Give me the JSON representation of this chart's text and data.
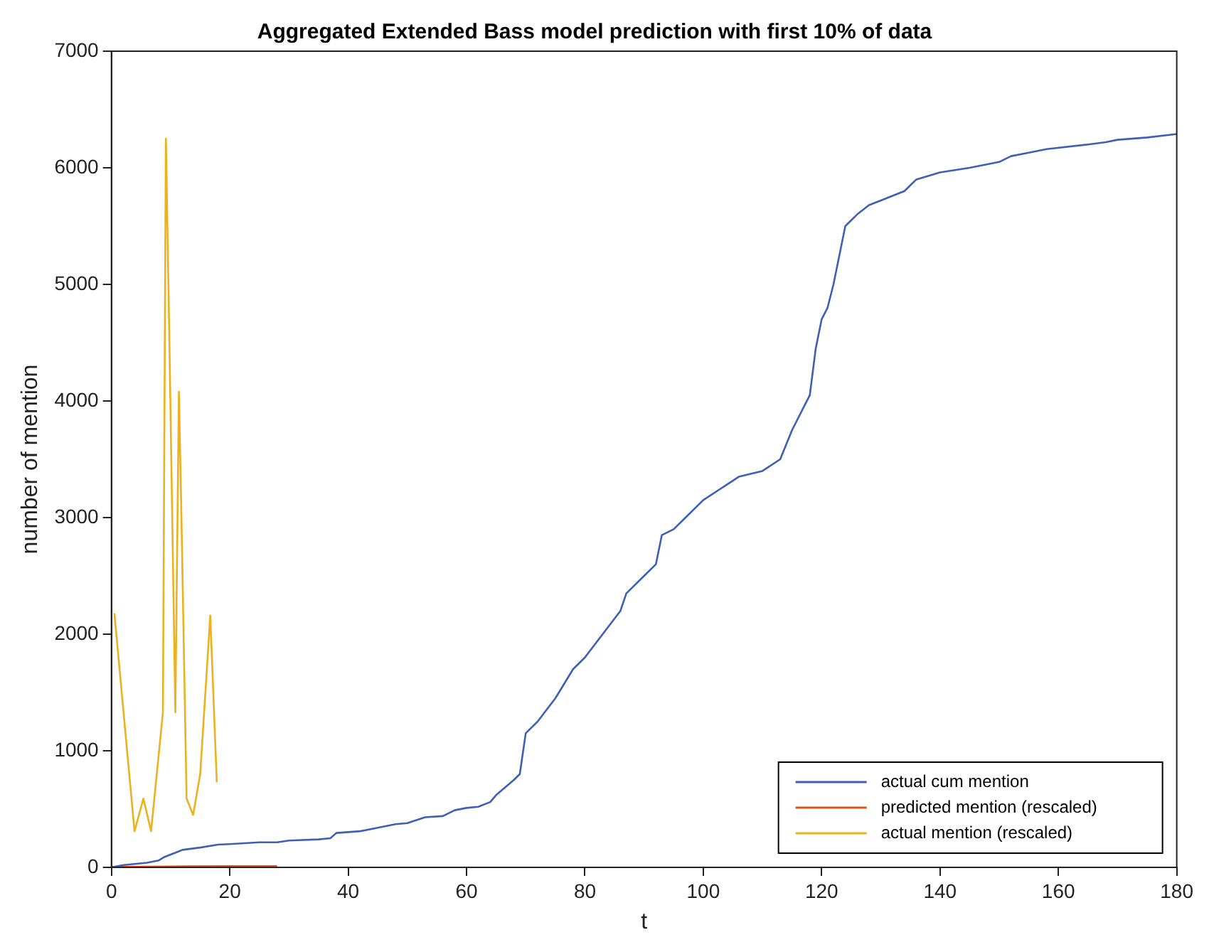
{
  "chart_data": {
    "type": "line",
    "title": "Aggregated Extended Bass model prediction with first 10% of data",
    "xlabel": "t",
    "ylabel": "number of mention",
    "xlim": [
      0,
      180
    ],
    "xticks": [
      0,
      20,
      40,
      60,
      80,
      100,
      120,
      140,
      160,
      180
    ],
    "ylim": [
      0,
      7000
    ],
    "yticks": [
      0,
      1000,
      2000,
      3000,
      4000,
      5000,
      6000,
      7000
    ],
    "grid": false,
    "legend": "bottom right",
    "marker": "none",
    "line_style": "solid",
    "series": [
      {
        "name": "actual cum mention",
        "color": "#3f5fb5",
        "x": [
          0,
          2,
          6,
          8,
          9,
          10,
          11,
          12,
          15,
          18,
          20,
          25,
          28,
          30,
          35,
          37,
          38,
          42,
          45,
          48,
          50,
          53,
          56,
          58,
          60,
          62,
          64,
          65,
          68,
          69,
          70,
          72,
          75,
          78,
          80,
          83,
          86,
          87,
          90,
          92,
          93,
          95,
          97,
          100,
          103,
          106,
          110,
          113,
          115,
          117,
          118,
          119,
          120,
          121,
          122,
          124,
          126,
          128,
          130,
          133,
          134,
          136,
          140,
          145,
          150,
          152,
          155,
          158,
          165,
          168,
          170,
          175,
          180
        ],
        "values": [
          0,
          20,
          40,
          60,
          90,
          110,
          130,
          150,
          170,
          195,
          200,
          215,
          215,
          230,
          240,
          250,
          295,
          310,
          340,
          370,
          380,
          430,
          440,
          490,
          510,
          520,
          560,
          620,
          750,
          800,
          1150,
          1250,
          1450,
          1700,
          1800,
          2000,
          2200,
          2350,
          2500,
          2600,
          2850,
          2900,
          3000,
          3150,
          3250,
          3350,
          3400,
          3500,
          3750,
          3950,
          4050,
          4450,
          4700,
          4800,
          5000,
          5500,
          5600,
          5680,
          5720,
          5780,
          5800,
          5900,
          5960,
          6000,
          6050,
          6100,
          6130,
          6160,
          6200,
          6220,
          6240,
          6260,
          6290
        ]
      },
      {
        "name": "predicted mention (rescaled)",
        "color": "#d95319",
        "x": [
          0,
          10,
          20,
          28
        ],
        "values": [
          5,
          8,
          10,
          10
        ]
      },
      {
        "name": "actual mention (rescaled)",
        "color": "#edb120",
        "x": [
          0.5,
          3.9,
          5.4,
          6.7,
          8.7,
          9.2,
          9.8,
          10.8,
          11.4,
          11.8,
          12.7,
          13.8,
          15,
          16.7,
          17.8
        ],
        "values": [
          2180,
          310,
          590,
          310,
          1330,
          6250,
          4500,
          1330,
          4080,
          3080,
          590,
          450,
          800,
          2160,
          730
        ]
      }
    ]
  }
}
